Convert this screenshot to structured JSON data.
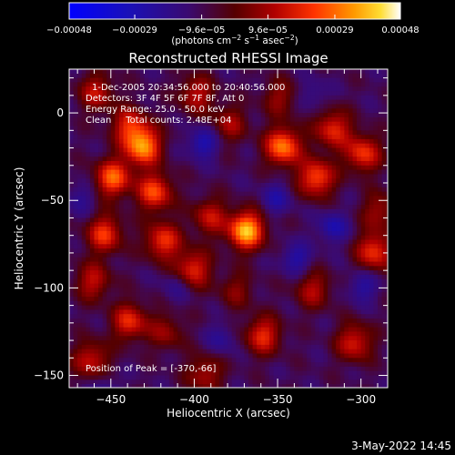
{
  "chart_data": {
    "type": "heatmap",
    "title": "Reconstructed RHESSI Image",
    "xlabel": "Heliocentric X (arcsec)",
    "ylabel": "Heliocentric Y (arcsec)",
    "xlim": [
      -475,
      -284
    ],
    "ylim": [
      -157,
      25
    ],
    "xticks": [
      -450,
      -400,
      -350,
      -300
    ],
    "yticks": [
      0,
      -50,
      -100,
      -150
    ],
    "xtick_labels": [
      "−450",
      "−400",
      "−350",
      "−300"
    ],
    "ytick_labels": [
      "0",
      "−50",
      "−100",
      "−150"
    ],
    "colorbar": {
      "range": [
        -0.00048,
        0.00048
      ],
      "ticks": [
        -0.00048,
        -0.00029,
        -9.6e-05,
        9.6e-05,
        0.00029,
        0.00048
      ],
      "tick_labels": [
        "−0.00048",
        "−0.00029",
        "−9.6e−05",
        "9.6e−05",
        "0.00029",
        "0.00048"
      ],
      "colormap_stops": [
        "#0000ff",
        "#2a0a7a",
        "#550000",
        "#c00000",
        "#ff5500",
        "#ffaa00",
        "#ffffff"
      ],
      "units_line": {
        "pre": "(photons cm",
        "exp1": "−2",
        "mid1": " s",
        "exp2": "−1",
        "mid2": " asec",
        "exp3": "−2",
        "post": ")"
      }
    },
    "annotations": [
      "1-Dec-2005 20:34:56.000 to 20:40:56.000",
      "Detectors: 3F 4F 5F 6F 7F 8F, Att 0",
      "Energy Range: 25.0 - 50.0 keV",
      "Clean     Total counts: 2.48E+04"
    ],
    "peak_label": "Position of Peak = [-370,-66]",
    "peak": [
      -370,
      -66
    ],
    "blobs": [
      {
        "x": -370,
        "y": -66,
        "v": 0.00048
      },
      {
        "x": -432,
        "y": -18,
        "v": 0.00042
      },
      {
        "x": -425,
        "y": -44,
        "v": 0.00033
      },
      {
        "x": -450,
        "y": -36,
        "v": 0.00036
      },
      {
        "x": -455,
        "y": -68,
        "v": 0.0003
      },
      {
        "x": -440,
        "y": -6,
        "v": 0.00026
      },
      {
        "x": -460,
        "y": 13,
        "v": 0.00022
      },
      {
        "x": -420,
        "y": -72,
        "v": 0.0003
      },
      {
        "x": -402,
        "y": -88,
        "v": 0.00028
      },
      {
        "x": -392,
        "y": -58,
        "v": 0.00022
      },
      {
        "x": -348,
        "y": -18,
        "v": 0.0004
      },
      {
        "x": -328,
        "y": -36,
        "v": 0.00034
      },
      {
        "x": -318,
        "y": -8,
        "v": 0.00028
      },
      {
        "x": -300,
        "y": -22,
        "v": 0.0003
      },
      {
        "x": -293,
        "y": -78,
        "v": 0.0003
      },
      {
        "x": -305,
        "y": -130,
        "v": 0.00026
      },
      {
        "x": -360,
        "y": -126,
        "v": 0.00028
      },
      {
        "x": -440,
        "y": -118,
        "v": 0.00028
      },
      {
        "x": -462,
        "y": -95,
        "v": 0.00022
      },
      {
        "x": -463,
        "y": -140,
        "v": 0.00024
      },
      {
        "x": -395,
        "y": -148,
        "v": 0.0002
      },
      {
        "x": -330,
        "y": -100,
        "v": 0.0002
      },
      {
        "x": -400,
        "y": 12,
        "v": 0.00022
      },
      {
        "x": -380,
        "y": -5,
        "v": 0.00018
      },
      {
        "x": -350,
        "y": 10,
        "v": 0.00016
      },
      {
        "x": -418,
        "y": -124,
        "v": 0.00016
      },
      {
        "x": -376,
        "y": -100,
        "v": 0.00014
      },
      {
        "x": -290,
        "y": -55,
        "v": 0.00018
      }
    ],
    "negative_spots": [
      {
        "x": -396,
        "y": -16,
        "v": -0.00022
      },
      {
        "x": -352,
        "y": -48,
        "v": -0.00016
      },
      {
        "x": -318,
        "y": -64,
        "v": -0.0002
      },
      {
        "x": -340,
        "y": -82,
        "v": -0.00018
      },
      {
        "x": -385,
        "y": -128,
        "v": -0.00012
      },
      {
        "x": -412,
        "y": -98,
        "v": -0.0001
      },
      {
        "x": -470,
        "y": -48,
        "v": -0.00012
      },
      {
        "x": -300,
        "y": -98,
        "v": -0.00016
      },
      {
        "x": -330,
        "y": 12,
        "v": -0.0001
      },
      {
        "x": -455,
        "y": -156,
        "v": -0.0001
      }
    ]
  },
  "footer": {
    "timestamp": "3-May-2022 14:45"
  }
}
